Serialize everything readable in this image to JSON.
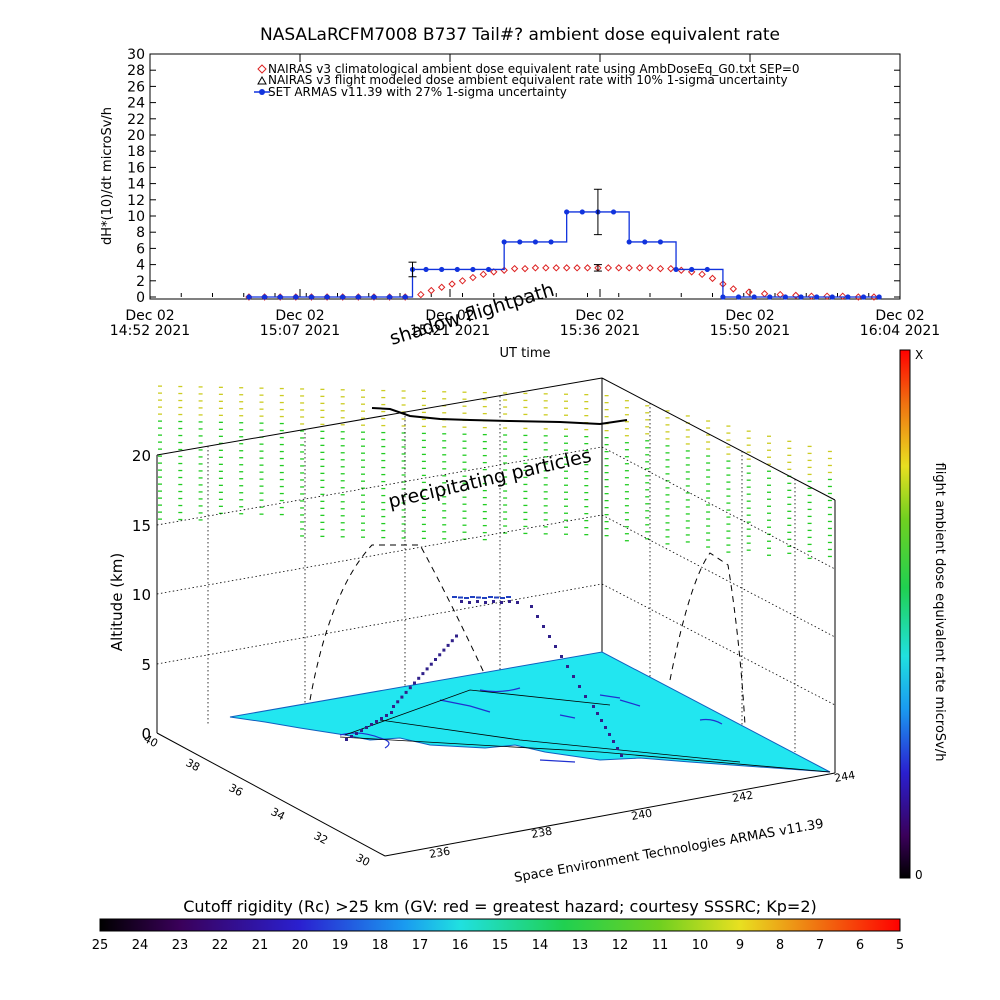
{
  "title": "NASALaRCFM7008  B737 Tail#? ambient dose equivalent rate",
  "chart_data": [
    {
      "type": "line",
      "ylabel": "dH*(10)/dt microSv/h",
      "xlabel": "UT time",
      "ylim": [
        0,
        30
      ],
      "yticks": [
        "0",
        "2",
        "4",
        "6",
        "8",
        "10",
        "12",
        "14",
        "16",
        "18",
        "20",
        "22",
        "24",
        "26",
        "28",
        "30"
      ],
      "xtick_labels": [
        {
          "line1": "Dec 02",
          "line2": "14:52 2021"
        },
        {
          "line1": "Dec 02",
          "line2": "15:07 2021"
        },
        {
          "line1": "Dec 02",
          "line2": "15:21 2021"
        },
        {
          "line1": "Dec 02",
          "line2": "15:36 2021"
        },
        {
          "line1": "Dec 02",
          "line2": "15:50 2021"
        },
        {
          "line1": "Dec 02",
          "line2": "16:04 2021"
        }
      ],
      "legend": [
        {
          "label": "NAIRAS v3 climatological ambient dose equivalent rate using AmbDoseEq_G0.txt SEP=0",
          "color": "#dd2222",
          "marker": "diamond"
        },
        {
          "label": "NAIRAS v3 flight modeled dose ambient equivalent rate with 10% 1-sigma uncertainty",
          "color": "#000000",
          "marker": "triangle"
        },
        {
          "label": "SET ARMAS v11.39 with 27% 1-sigma uncertainty",
          "color": "#1133dd",
          "marker": "circle"
        }
      ],
      "series": [
        {
          "name": "SET ARMAS v11.39 with 27% 1-sigma uncertainty",
          "x_minutes": [
            9.5,
            11,
            12.5,
            14,
            15.5,
            17,
            18.5,
            20,
            21.5,
            23,
            24.5,
            25.2,
            26.5,
            28,
            29.5,
            31,
            32.5,
            34,
            35.5,
            37,
            38.5,
            40,
            41.5,
            43,
            44.5,
            46,
            47.5,
            49,
            50.5,
            52,
            53.5,
            55,
            56.5,
            58,
            59.5,
            61,
            62.5,
            64,
            65.5,
            67,
            68.5,
            70
          ],
          "values": [
            0,
            0,
            0,
            0,
            0,
            0,
            0,
            0,
            0,
            0,
            0,
            3.4,
            3.4,
            3.4,
            3.4,
            3.4,
            3.4,
            6.8,
            6.8,
            6.8,
            6.8,
            10.5,
            10.5,
            10.5,
            10.5,
            6.8,
            6.8,
            6.8,
            3.4,
            3.4,
            3.4,
            0,
            0,
            0,
            0,
            0,
            0,
            0,
            0,
            0,
            0,
            0
          ],
          "errorbars": [
            {
              "x_minutes": 25.2,
              "value": 3.4,
              "err": 0.9
            },
            {
              "x_minutes": 43,
              "value": 10.5,
              "err": 2.8
            }
          ]
        },
        {
          "name": "NAIRAS v3 climatological ambient dose equivalent rate using AmbDoseEq_G0.txt SEP=0",
          "x_minutes": [
            9.5,
            11,
            12.5,
            14,
            15.5,
            17,
            18.5,
            20,
            21.5,
            23,
            24.5,
            26,
            27,
            28,
            29,
            30,
            31,
            32,
            33,
            34,
            35,
            36,
            37,
            38,
            39,
            40,
            41,
            42,
            43,
            44,
            45,
            46,
            47,
            48,
            49,
            50,
            51,
            52,
            53,
            54,
            55,
            56,
            57.5,
            59,
            60.5,
            62,
            63.5,
            65,
            66.5,
            68,
            69.5
          ],
          "values": [
            0,
            0,
            0,
            0,
            0,
            0,
            0,
            0,
            0,
            0,
            0,
            0.3,
            0.8,
            1.2,
            1.6,
            2.0,
            2.4,
            2.8,
            3.1,
            3.3,
            3.5,
            3.5,
            3.6,
            3.6,
            3.6,
            3.6,
            3.6,
            3.6,
            3.6,
            3.6,
            3.6,
            3.6,
            3.6,
            3.6,
            3.5,
            3.5,
            3.3,
            3.1,
            2.8,
            2.3,
            1.6,
            1.0,
            0.6,
            0.4,
            0.3,
            0.2,
            0.1,
            0.1,
            0.1,
            0,
            0
          ]
        },
        {
          "name": "NAIRAS v3 flight modeled dose ambient equivalent rate with 10% 1-sigma uncertainty",
          "points": [
            {
              "x_minutes": 43,
              "value": 3.6,
              "err": 0.4
            }
          ]
        }
      ]
    },
    {
      "type": "scatter",
      "ylabel": "Altitude (km)",
      "zticks": [
        "0",
        "5",
        "10",
        "15",
        "20"
      ],
      "lat_ticks": [
        "40",
        "38",
        "36",
        "34",
        "32",
        "30"
      ],
      "lon_ticks": [
        "236",
        "238",
        "240",
        "242",
        "244"
      ],
      "annotations": [
        "shadow flightpath",
        "precipitating particles"
      ],
      "footer": "Space Environment Technologies ARMAS v11.39",
      "colorbar": {
        "label": "flight ambient dose equivalent rate microSv/h",
        "top": "X",
        "bottom": "0"
      }
    }
  ],
  "cutoff": {
    "label": "Cutoff rigidity (Rc) >25 km (GV: red = greatest hazard; courtesy SSSRC; Kp=2)",
    "ticks": [
      "25",
      "24",
      "23",
      "22",
      "21",
      "20",
      "19",
      "18",
      "17",
      "16",
      "15",
      "14",
      "13",
      "12",
      "11",
      "10",
      "9",
      "8",
      "7",
      "6",
      "5"
    ]
  },
  "colors": {
    "armas": "#1133dd",
    "nairas": "#dd2222",
    "ground": "#22e6f0",
    "particles_green": "#22cc22",
    "particles_yellow": "#cccc22"
  }
}
